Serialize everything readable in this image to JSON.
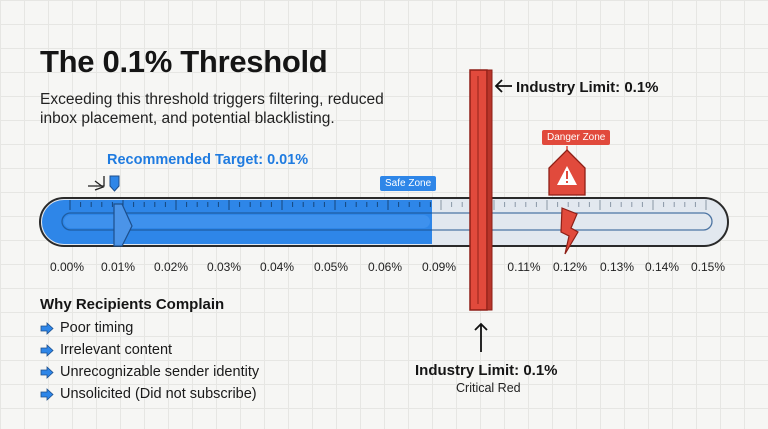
{
  "title": "The 0.1% Threshold",
  "subtitle": "Exceeding this threshold triggers filtering, reduced inbox placement, and potential blacklisting.",
  "recommended_target": "Recommended Target: 0.01%",
  "safe_zone_label": "Safe Zone",
  "danger_zone_label": "Danger Zone",
  "industry_limit_top": "Industry Limit: 0.1%",
  "industry_limit_bottom": "Industry Limit: 0.1%",
  "critical_label": "Critical Red",
  "scale": {
    "tick_labels": [
      "0.00%",
      "0.01%",
      "0.02%",
      "0.03%",
      "0.04%",
      "0.05%",
      "0.06%",
      "0.09%",
      "0.11%",
      "0.12%",
      "0.13%",
      "0.14%",
      "0.15%"
    ],
    "safe_fill_ends_at": "0.09%"
  },
  "complaints": {
    "heading": "Why Recipients Complain",
    "items": [
      "Poor timing",
      "Irrelevant content",
      "Unrecognizable sender identity",
      "Unsolicited (Did not subscribe)"
    ]
  },
  "colors": {
    "blue": "#2e86e8",
    "red": "#e14a3c",
    "track": "#d9e2ec"
  },
  "icons": [
    "warning-icon",
    "arrow-icon"
  ]
}
